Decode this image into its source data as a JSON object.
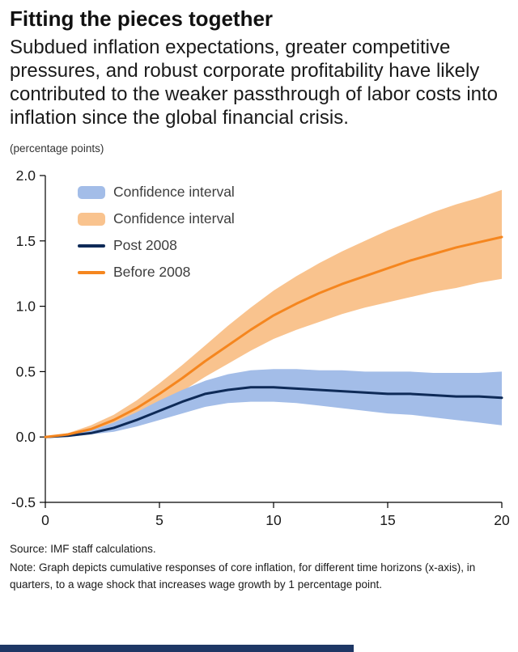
{
  "header": {
    "title": "Fitting the pieces together",
    "subtitle": "Subdued inflation expectations, greater competitive pressures, and robust corporate profitability have likely contributed to the weaker passthrough of labor costs into inflation since the global financial crisis.",
    "units_label": "(percentage points)"
  },
  "chart_data": {
    "type": "line",
    "title": "",
    "xlabel": "",
    "ylabel": "(percentage points)",
    "xlim": [
      0,
      20
    ],
    "ylim": [
      -0.5,
      2.0
    ],
    "x_ticks": [
      0,
      5,
      10,
      15,
      20
    ],
    "y_ticks": [
      -0.5,
      0.0,
      0.5,
      1.0,
      1.5,
      2.0
    ],
    "grid": false,
    "legend_position": "inside-top-left",
    "x": [
      0,
      1,
      2,
      3,
      4,
      5,
      6,
      7,
      8,
      9,
      10,
      11,
      12,
      13,
      14,
      15,
      16,
      17,
      18,
      19,
      20
    ],
    "series": [
      {
        "name": "Confidence interval",
        "belongs_to": "Before 2008",
        "type": "band",
        "color": "#F9C38E",
        "upper": [
          0.0,
          0.03,
          0.09,
          0.17,
          0.28,
          0.41,
          0.55,
          0.7,
          0.85,
          0.99,
          1.12,
          1.23,
          1.33,
          1.42,
          1.5,
          1.58,
          1.65,
          1.72,
          1.78,
          1.83,
          1.89
        ],
        "lower": [
          0.0,
          0.01,
          0.04,
          0.09,
          0.16,
          0.25,
          0.35,
          0.46,
          0.56,
          0.66,
          0.75,
          0.82,
          0.88,
          0.94,
          0.99,
          1.03,
          1.07,
          1.11,
          1.14,
          1.18,
          1.21
        ]
      },
      {
        "name": "Confidence interval",
        "belongs_to": "Post 2008",
        "type": "band",
        "color": "#A3BDE8",
        "upper": [
          0.0,
          0.02,
          0.05,
          0.11,
          0.19,
          0.28,
          0.36,
          0.43,
          0.48,
          0.51,
          0.52,
          0.52,
          0.51,
          0.51,
          0.5,
          0.5,
          0.5,
          0.49,
          0.49,
          0.49,
          0.5
        ],
        "lower": [
          0.0,
          0.0,
          0.02,
          0.04,
          0.08,
          0.13,
          0.18,
          0.23,
          0.26,
          0.27,
          0.27,
          0.26,
          0.24,
          0.22,
          0.2,
          0.18,
          0.17,
          0.15,
          0.13,
          0.11,
          0.09
        ]
      },
      {
        "name": "Post 2008",
        "type": "line",
        "color": "#0E2A57",
        "values": [
          0.0,
          0.01,
          0.03,
          0.07,
          0.13,
          0.2,
          0.27,
          0.33,
          0.36,
          0.38,
          0.38,
          0.37,
          0.36,
          0.35,
          0.34,
          0.33,
          0.33,
          0.32,
          0.31,
          0.31,
          0.3
        ]
      },
      {
        "name": "Before 2008",
        "type": "line",
        "color": "#F5861F",
        "values": [
          0.0,
          0.02,
          0.06,
          0.13,
          0.22,
          0.33,
          0.45,
          0.58,
          0.7,
          0.82,
          0.93,
          1.02,
          1.1,
          1.17,
          1.23,
          1.29,
          1.35,
          1.4,
          1.45,
          1.49,
          1.53
        ]
      }
    ],
    "legend": [
      {
        "label": "Confidence interval",
        "swatch": "band",
        "color": "#A3BDE8"
      },
      {
        "label": "Confidence interval",
        "swatch": "band",
        "color": "#F9C38E"
      },
      {
        "label": "Post 2008",
        "swatch": "line",
        "color": "#0E2A57"
      },
      {
        "label": "Before 2008",
        "swatch": "line",
        "color": "#F5861F"
      }
    ]
  },
  "footer": {
    "source": "Source: IMF staff calculations.",
    "note": "Note: Graph depicts cumulative responses of core inflation, for different time horizons (x-axis), in quarters, to a wage shock that increases wage growth by 1 percentage point."
  },
  "colors": {
    "bottom_bar": "#1E3765",
    "axis": "#000000",
    "text": "#1A1A1A"
  }
}
